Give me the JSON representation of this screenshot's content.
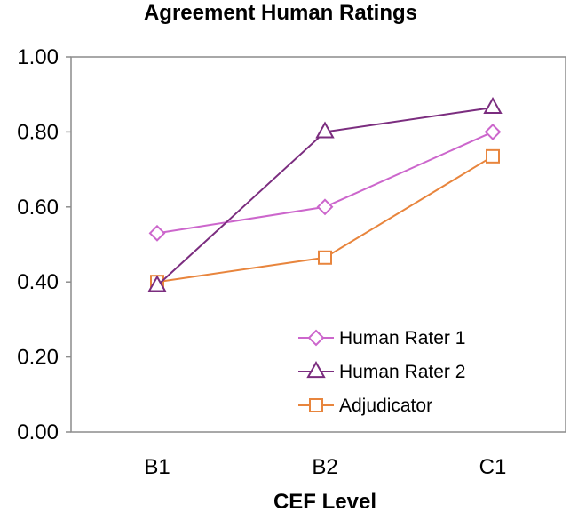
{
  "chart_data": {
    "type": "line",
    "title": "Agreement Human Ratings",
    "xlabel": "CEF Level",
    "ylabel": "",
    "categories": [
      "B1",
      "B2",
      "C1"
    ],
    "ylim": [
      0,
      1.0
    ],
    "yticks": [
      "0.00",
      "0.20",
      "0.40",
      "0.60",
      "0.80",
      "1.00"
    ],
    "grid": false,
    "legend_position": "bottom-right",
    "series": [
      {
        "name": "Human Rater 1",
        "values": [
          0.53,
          0.6,
          0.8
        ],
        "color": "#CC66CC",
        "marker": "diamond"
      },
      {
        "name": "Human Rater 2",
        "values": [
          0.39,
          0.8,
          0.865
        ],
        "color": "#7B2D7F",
        "marker": "triangle"
      },
      {
        "name": "Adjudicator",
        "values": [
          0.4,
          0.465,
          0.735
        ],
        "color": "#E8853D",
        "marker": "square"
      }
    ]
  }
}
